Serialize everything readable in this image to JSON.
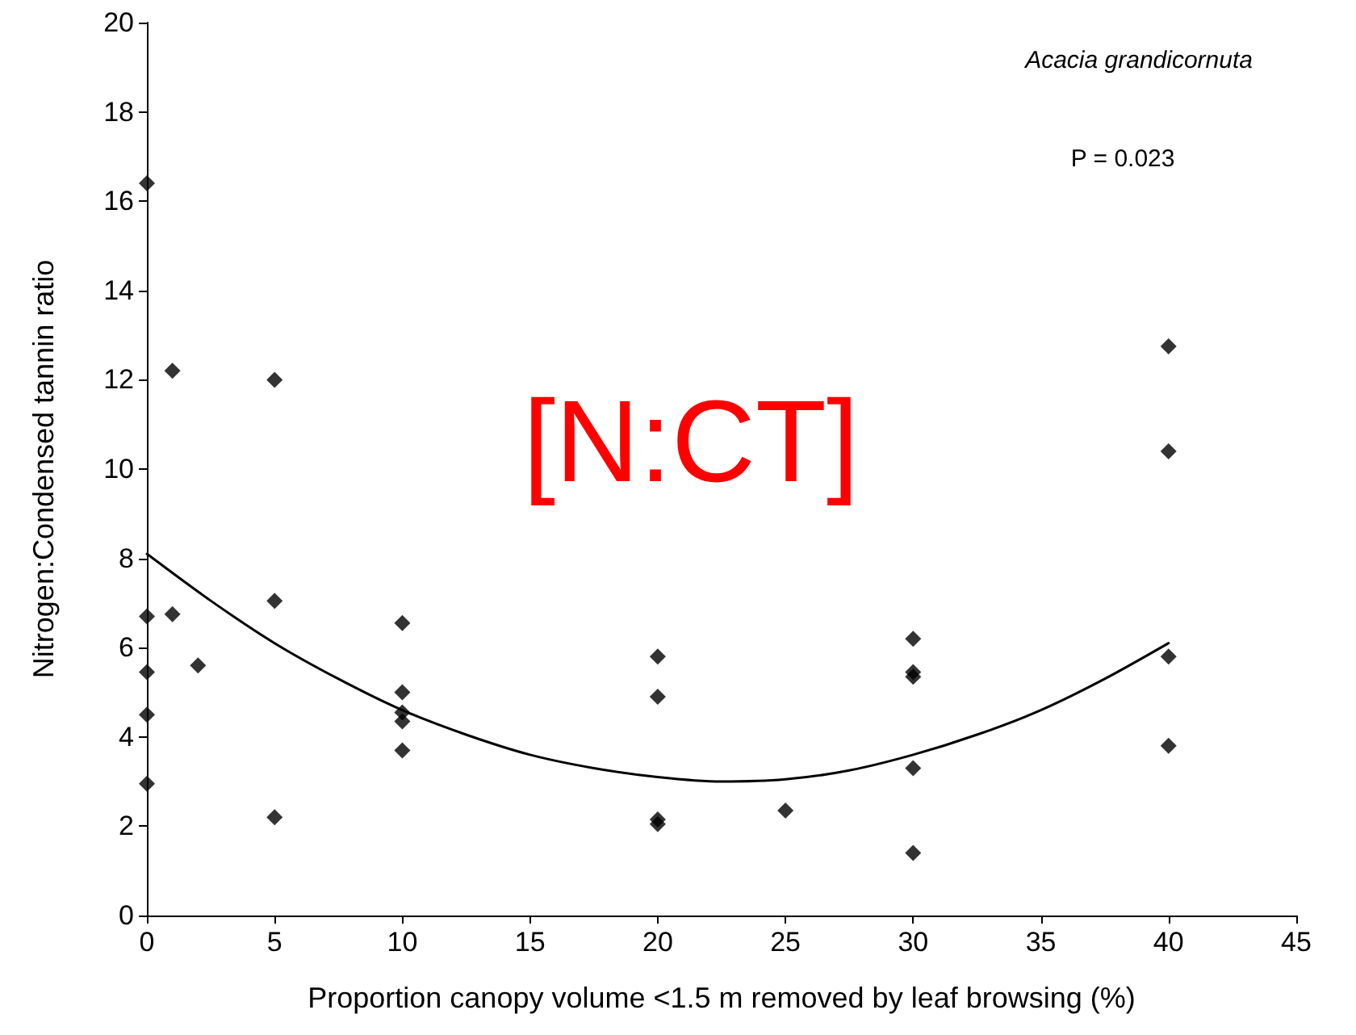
{
  "chart_data": {
    "type": "scatter",
    "xlabel": "Proportion canopy volume <1.5 m removed by leaf browsing (%)",
    "ylabel": "Nitrogen:Condensed tannin ratio",
    "annotations": [
      "Acacia grandicornuta",
      "P = 0.023",
      "[N:CT]"
    ],
    "xlim": [
      0,
      45
    ],
    "xticks": [
      0,
      5,
      10,
      15,
      20,
      25,
      30,
      35,
      40,
      45
    ],
    "ylim": [
      0,
      20
    ],
    "yticks": [
      0,
      2,
      4,
      6,
      8,
      10,
      12,
      14,
      16,
      18,
      20
    ],
    "grid": false,
    "marker": "diamond",
    "series": [
      {
        "color": "#000000",
        "x": [
          0,
          0,
          0,
          0,
          0,
          1,
          1,
          2,
          5,
          5,
          5,
          10,
          10,
          10,
          10,
          10,
          20,
          20,
          20,
          20,
          25,
          30,
          30,
          30,
          30,
          30,
          40,
          40,
          40,
          40
        ],
        "values": [
          16.4,
          6.7,
          5.45,
          4.5,
          2.95,
          12.2,
          6.75,
          5.6,
          12.0,
          7.05,
          2.2,
          6.55,
          5.0,
          4.55,
          4.35,
          3.7,
          5.8,
          4.9,
          2.15,
          2.05,
          2.35,
          6.2,
          5.45,
          5.35,
          3.3,
          1.4,
          12.75,
          10.4,
          5.8,
          3.8
        ]
      },
      {
        "type": "line",
        "color": "#000000",
        "marker": "none",
        "line_style": "solid",
        "x": [
          0,
          2.5,
          5,
          7.5,
          10,
          12.5,
          15,
          17.5,
          20,
          22.5,
          25,
          27.5,
          30,
          32.5,
          35,
          37.5,
          40
        ],
        "values": [
          8.1,
          7.05,
          6.1,
          5.3,
          4.6,
          4.05,
          3.6,
          3.3,
          3.1,
          3.0,
          3.05,
          3.25,
          3.6,
          4.05,
          4.6,
          5.3,
          6.1
        ]
      }
    ]
  }
}
